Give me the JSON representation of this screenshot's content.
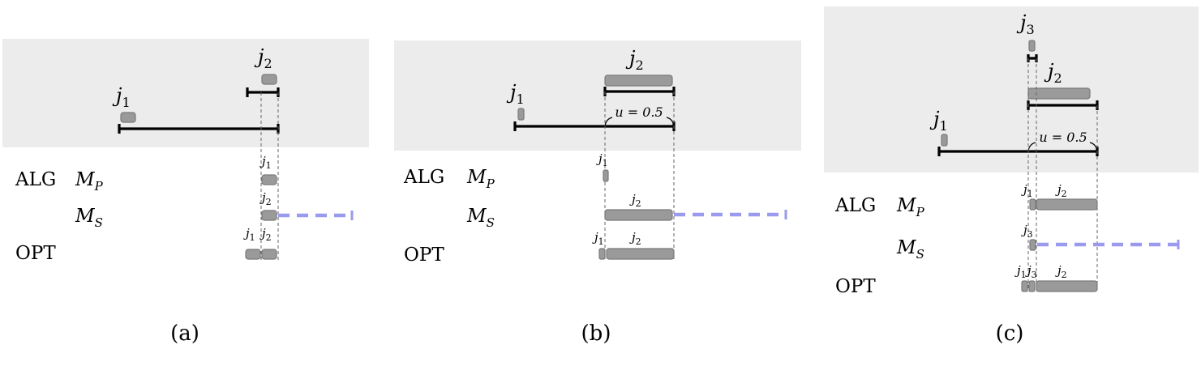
{
  "colors": {
    "panel_background": "#ececec",
    "job_fill": "#9a9a9a",
    "job_stroke": "#7a7a7a",
    "timeline": "#000000",
    "dashed_extension": "#9a9aee",
    "guide_line": "#666666"
  },
  "labels": {
    "alg": "ALG",
    "mp_base": "M",
    "mp_sub": "P",
    "ms_base": "M",
    "ms_sub": "S",
    "opt": "OPT"
  },
  "jobs": {
    "base": "j",
    "j1": "1",
    "j2": "2",
    "j3": "3"
  },
  "annotation": "u = 0.5",
  "subfigure_captions": [
    "(a)",
    "(b)",
    "(c)"
  ]
}
